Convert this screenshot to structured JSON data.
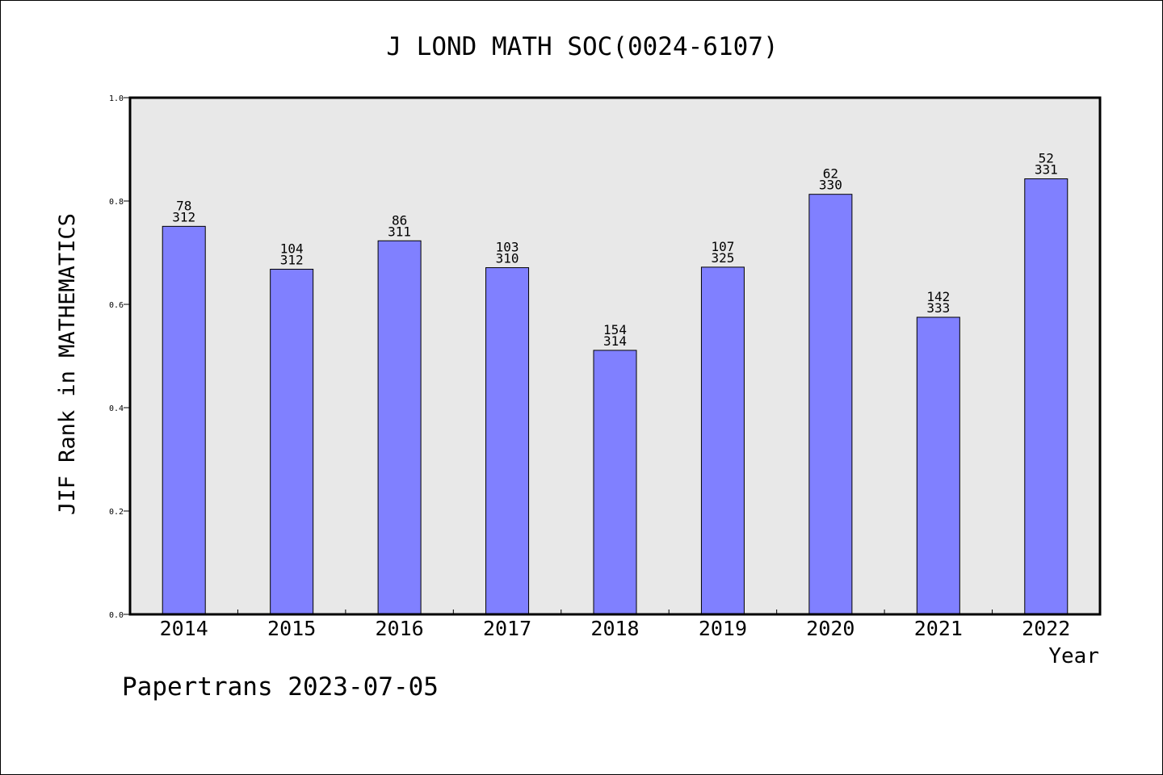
{
  "chart_data": {
    "type": "bar",
    "title": "J LOND MATH SOC(0024-6107)",
    "xlabel": "Year",
    "ylabel": "JIF Rank in MATHEMATICS",
    "ylim": [
      0,
      1.0
    ],
    "yticks": [
      "0.0",
      "0.2",
      "0.4",
      "0.6",
      "0.8",
      "1.0"
    ],
    "categories": [
      "2014",
      "2015",
      "2016",
      "2017",
      "2018",
      "2019",
      "2020",
      "2021",
      "2022"
    ],
    "values": [
      0.751,
      0.668,
      0.723,
      0.671,
      0.511,
      0.672,
      0.813,
      0.575,
      0.843
    ],
    "ranks": [
      "78",
      "104",
      "86",
      "103",
      "154",
      "107",
      "62",
      "142",
      "52"
    ],
    "totals": [
      "312",
      "312",
      "311",
      "310",
      "314",
      "325",
      "330",
      "333",
      "331"
    ],
    "grid": false,
    "bar_color": "#8080ff",
    "plot_background": "#e8e8e8"
  },
  "footer": {
    "text": "Papertrans 2023-07-05"
  }
}
